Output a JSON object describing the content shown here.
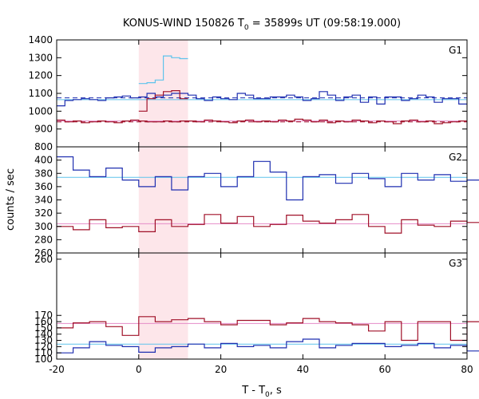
{
  "chart_data": {
    "type": "line",
    "title": {
      "pre": "KONUS-WIND 150826 T",
      "sub": "0",
      "post": " = 35899s UT (09:58:19.000)"
    },
    "xlabel": {
      "pre": "T - T",
      "sub": "0",
      "post": ", s"
    },
    "ylabel": "counts / sec",
    "xlim": [
      -20,
      80
    ],
    "x_ticks": [
      "-20",
      "0",
      "20",
      "40",
      "60",
      "80"
    ],
    "highlight_interval": [
      0,
      12
    ],
    "colors": {
      "blue": "#1f2fb0",
      "red": "#a01028",
      "cyan": "#5fc3ec",
      "pink": "#e58cc8",
      "shade": "#fde6ea"
    },
    "panels": [
      {
        "name": "G1",
        "ylim": [
          800,
          1400
        ],
        "y_ticks": [
          "800",
          "900",
          "1000",
          "1100",
          "1200",
          "1300",
          "1400"
        ],
        "bin_width": 2,
        "x_start": -20,
        "series": [
          {
            "color": "blue",
            "values": [
              1030,
              1060,
              1065,
              1070,
              1065,
              1060,
              1075,
              1080,
              1085,
              1075,
              1080,
              1100,
              1080,
              1090,
              1100,
              1100,
              1090,
              1070,
              1060,
              1080,
              1070,
              1065,
              1100,
              1090,
              1070,
              1070,
              1080,
              1080,
              1090,
              1080,
              1060,
              1070,
              1110,
              1090,
              1060,
              1080,
              1090,
              1050,
              1080,
              1040,
              1080,
              1080,
              1060,
              1070,
              1090,
              1080,
              1050,
              1070,
              1070,
              1040
            ]
          },
          {
            "color": "red",
            "values": [
              950,
              940,
              945,
              935,
              940,
              945,
              940,
              935,
              945,
              950,
              945,
              940,
              940,
              945,
              940,
              945,
              945,
              940,
              950,
              945,
              940,
              935,
              945,
              950,
              940,
              945,
              940,
              950,
              945,
              955,
              950,
              940,
              950,
              935,
              945,
              940,
              950,
              945,
              935,
              945,
              940,
              930,
              945,
              950,
              940,
              945,
              930,
              935,
              940,
              945
            ]
          }
        ],
        "fits": [
          {
            "color": "blue",
            "value": 1065,
            "dashed_value": 1075
          },
          {
            "color": "red",
            "value": 945,
            "dashed_value": 940
          }
        ],
        "source_bins": {
          "x": [
            0,
            2,
            4,
            6,
            8,
            10
          ],
          "values": [
            1155,
            1160,
            1175,
            1310,
            1300,
            1295
          ],
          "red_values": [
            1000,
            1070,
            1090,
            1110,
            1115,
            1070
          ]
        }
      },
      {
        "name": "G2",
        "ylim": [
          260,
          420
        ],
        "y_ticks": [
          "260",
          "280",
          "300",
          "320",
          "340",
          "360",
          "380",
          "400"
        ],
        "bin_width": 4,
        "x_start": -20,
        "series": [
          {
            "color": "blue",
            "values": [
              405,
              385,
              375,
              388,
              370,
              360,
              375,
              355,
              375,
              380,
              360,
              375,
              398,
              382,
              340,
              375,
              378,
              365,
              380,
              372,
              360,
              380,
              370,
              378,
              368,
              370,
              360,
              375,
              380,
              385,
              375,
              395,
              370,
              382,
              368,
              368
            ]
          },
          {
            "color": "red",
            "values": [
              300,
              295,
              310,
              298,
              300,
              292,
              310,
              300,
              303,
              318,
              305,
              315,
              300,
              303,
              317,
              308,
              305,
              310,
              318,
              300,
              290,
              310,
              302,
              300,
              308,
              306,
              300,
              310,
              295,
              318,
              315,
              310,
              315,
              300,
              305,
              300
            ]
          }
        ],
        "fits": [
          {
            "color": "blue",
            "value": 374
          },
          {
            "color": "red",
            "value": 304
          }
        ]
      },
      {
        "name": "G3",
        "ylim": [
          100,
          270
        ],
        "y_ticks": [
          "100",
          "110",
          "120",
          "130",
          "140",
          "150",
          "160",
          "170",
          "260"
        ],
        "bin_width": 4,
        "x_start": -20,
        "series": [
          {
            "color": "blue",
            "values": [
              110,
              118,
              128,
              122,
              120,
              111,
              118,
              120,
              124,
              118,
              125,
              120,
              122,
              118,
              128,
              132,
              118,
              122,
              125,
              125,
              120,
              122,
              125,
              118,
              122,
              113,
              115,
              118,
              122,
              125,
              120,
              112,
              120,
              135,
              124,
              122
            ]
          },
          {
            "color": "red",
            "values": [
              150,
              158,
              160,
              152,
              138,
              168,
              160,
              163,
              165,
              160,
              155,
              162,
              162,
              155,
              158,
              165,
              160,
              158,
              155,
              145,
              160,
              130,
              160,
              160,
              130,
              160,
              152,
              158,
              148,
              168,
              158,
              155,
              160,
              140,
              145,
              160
            ]
          }
        ],
        "fits": [
          {
            "color": "blue",
            "value": 124
          },
          {
            "color": "red",
            "value": 157
          }
        ]
      }
    ]
  }
}
